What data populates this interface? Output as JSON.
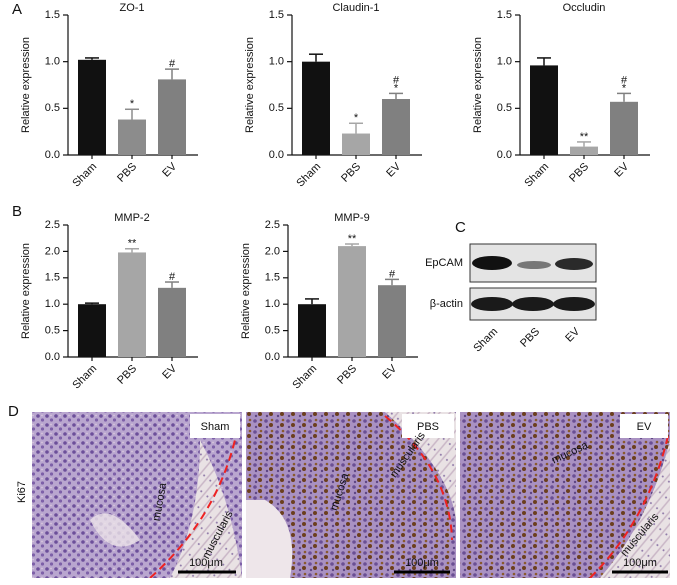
{
  "panels": [
    "A",
    "B",
    "C",
    "D"
  ],
  "chart_data": [
    {
      "type": "bar",
      "title": "ZO-1",
      "ylabel": "Relative expression",
      "categories": [
        "Sham",
        "PBS",
        "EV"
      ],
      "values": [
        1.02,
        0.38,
        0.81
      ],
      "errors": [
        0.02,
        0.11,
        0.11
      ],
      "colors": [
        "#111111",
        "#8c8c8c",
        "#808080"
      ],
      "annotations": [
        [],
        [
          "*"
        ],
        [
          "#"
        ]
      ],
      "ylim": [
        0,
        1.5
      ],
      "yticks": [
        {
          "value": 0,
          "label": "0.0"
        },
        {
          "value": 0.5,
          "label": "0.5"
        },
        {
          "value": 1,
          "label": "1.0"
        },
        {
          "value": 1.5,
          "label": "1.5"
        }
      ]
    },
    {
      "type": "bar",
      "title": "Claudin-1",
      "ylabel": "Relative expression",
      "categories": [
        "Sham",
        "PBS",
        "EV"
      ],
      "values": [
        1.0,
        0.23,
        0.6
      ],
      "errors": [
        0.08,
        0.11,
        0.06
      ],
      "colors": [
        "#111111",
        "#a6a6a6",
        "#808080"
      ],
      "annotations": [
        [],
        [
          "*"
        ],
        [
          "#",
          "*"
        ]
      ],
      "ylim": [
        0,
        1.5
      ],
      "yticks": [
        {
          "value": 0,
          "label": "0.0"
        },
        {
          "value": 0.5,
          "label": "0.5"
        },
        {
          "value": 1,
          "label": "1.0"
        },
        {
          "value": 1.5,
          "label": "1.5"
        }
      ]
    },
    {
      "type": "bar",
      "title": "Occludin",
      "ylabel": "Relative expression",
      "categories": [
        "Sham",
        "PBS",
        "EV"
      ],
      "values": [
        0.96,
        0.09,
        0.57
      ],
      "errors": [
        0.08,
        0.05,
        0.09
      ],
      "colors": [
        "#111111",
        "#a6a6a6",
        "#808080"
      ],
      "annotations": [
        [],
        [
          "**"
        ],
        [
          "#",
          "*"
        ]
      ],
      "ylim": [
        0,
        1.5
      ],
      "yticks": [
        {
          "value": 0,
          "label": "0.0"
        },
        {
          "value": 0.5,
          "label": "0.5"
        },
        {
          "value": 1,
          "label": "1.0"
        },
        {
          "value": 1.5,
          "label": "1.5"
        }
      ]
    },
    {
      "type": "bar",
      "title": "MMP-2",
      "ylabel": "Relative expression",
      "categories": [
        "Sham",
        "PBS",
        "EV"
      ],
      "values": [
        1.0,
        1.98,
        1.31
      ],
      "errors": [
        0.02,
        0.07,
        0.11
      ],
      "colors": [
        "#111111",
        "#a6a6a6",
        "#808080"
      ],
      "annotations": [
        [],
        [
          "**"
        ],
        [
          "#"
        ]
      ],
      "ylim": [
        0,
        2.5
      ],
      "yticks": [
        {
          "value": 0,
          "label": "0.0"
        },
        {
          "value": 0.5,
          "label": "0.5"
        },
        {
          "value": 1,
          "label": "1.0"
        },
        {
          "value": 1.5,
          "label": "1.5"
        },
        {
          "value": 2,
          "label": "2.0"
        },
        {
          "value": 2.5,
          "label": "2.5"
        }
      ]
    },
    {
      "type": "bar",
      "title": "MMP-9",
      "ylabel": "Relative expression",
      "categories": [
        "Sham",
        "PBS",
        "EV"
      ],
      "values": [
        1.0,
        2.1,
        1.36
      ],
      "errors": [
        0.1,
        0.04,
        0.11
      ],
      "colors": [
        "#111111",
        "#a6a6a6",
        "#808080"
      ],
      "annotations": [
        [],
        [
          "**"
        ],
        [
          "#"
        ]
      ],
      "ylim": [
        0,
        2.5
      ],
      "yticks": [
        {
          "value": 0,
          "label": "0.0"
        },
        {
          "value": 0.5,
          "label": "0.5"
        },
        {
          "value": 1,
          "label": "1.0"
        },
        {
          "value": 1.5,
          "label": "1.5"
        },
        {
          "value": 2,
          "label": "2.0"
        },
        {
          "value": 2.5,
          "label": "2.5"
        }
      ]
    }
  ],
  "blot": {
    "rows": [
      "EpCAM",
      "β-actin"
    ],
    "lanes": [
      "Sham",
      "PBS",
      "EV"
    ]
  },
  "histology": {
    "row_label": "Ki67",
    "images": [
      {
        "title": "Sham",
        "labels": [
          "mucosa",
          "muscularis"
        ],
        "scale": "100μm"
      },
      {
        "title": "PBS",
        "labels": [
          "mucosa",
          "muscularis"
        ],
        "scale": "100μm"
      },
      {
        "title": "EV",
        "labels": [
          "mucosa",
          "muscularis"
        ],
        "scale": "100μm"
      }
    ]
  }
}
